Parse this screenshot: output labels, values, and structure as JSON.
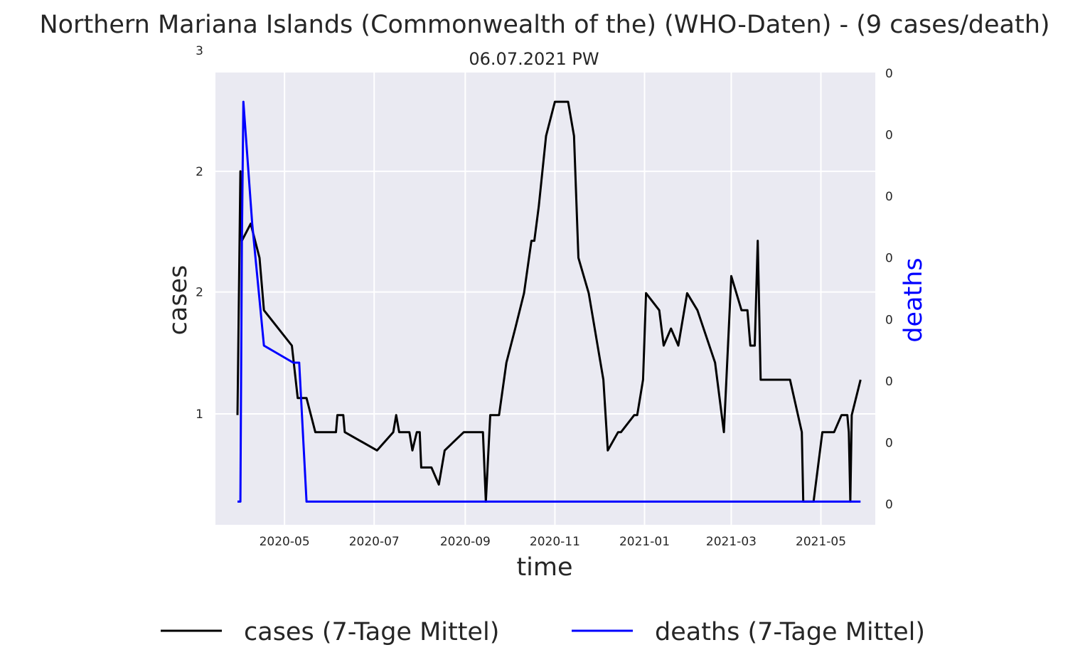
{
  "chart_data": {
    "type": "line",
    "title": "Northern Mariana Islands (Commonwealth of the) (WHO-Daten) - (9 cases/death)",
    "subtitle": "06.07.2021 PW",
    "xlabel": "time",
    "ylabel": "cases",
    "ylabel_right": "deaths",
    "x_ticks": [
      "2020-05",
      "2020-07",
      "2020-09",
      "2020-11",
      "2021-01",
      "2021-03",
      "2021-05"
    ],
    "y_ticks_left": [
      "1",
      "2",
      "2",
      "3"
    ],
    "y_ticks_right": [
      "0",
      "0",
      "0",
      "0",
      "0",
      "0",
      "0",
      "0"
    ],
    "xlim": [
      "2020-03-15",
      "2021-06-07"
    ],
    "ylim_left": [
      0.1,
      3.81
    ],
    "ylim_right": [
      0,
      0.1
    ],
    "grid": true,
    "legend_position": "bottom-center",
    "colors": {
      "cases": "#000000",
      "deaths": "#0000ff",
      "axes_bg": "#eaeaf2",
      "grid": "#ffffff"
    },
    "series": [
      {
        "name": "cases (7-Tage Mittel)",
        "axis": "left",
        "points": [
          [
            "2020-03-30",
            1.0
          ],
          [
            "2020-04-01",
            3.0
          ],
          [
            "2020-04-02",
            2.43
          ],
          [
            "2020-04-08",
            2.57
          ],
          [
            "2020-04-14",
            2.29
          ],
          [
            "2020-04-17",
            1.86
          ],
          [
            "2020-05-06",
            1.57
          ],
          [
            "2020-05-10",
            1.14
          ],
          [
            "2020-05-16",
            1.14
          ],
          [
            "2020-05-22",
            0.86
          ],
          [
            "2020-06-05",
            0.86
          ],
          [
            "2020-06-06",
            1.0
          ],
          [
            "2020-06-10",
            1.0
          ],
          [
            "2020-06-11",
            0.86
          ],
          [
            "2020-07-03",
            0.71
          ],
          [
            "2020-07-14",
            0.86
          ],
          [
            "2020-07-16",
            1.0
          ],
          [
            "2020-07-18",
            0.86
          ],
          [
            "2020-07-25",
            0.86
          ],
          [
            "2020-07-27",
            0.71
          ],
          [
            "2020-07-30",
            0.86
          ],
          [
            "2020-08-01",
            0.86
          ],
          [
            "2020-08-02",
            0.57
          ],
          [
            "2020-08-09",
            0.57
          ],
          [
            "2020-08-14",
            0.43
          ],
          [
            "2020-08-18",
            0.71
          ],
          [
            "2020-08-31",
            0.86
          ],
          [
            "2020-09-13",
            0.86
          ],
          [
            "2020-09-15",
            0.29
          ],
          [
            "2020-09-18",
            1.0
          ],
          [
            "2020-09-24",
            1.0
          ],
          [
            "2020-09-29",
            1.43
          ],
          [
            "2020-10-05",
            1.71
          ],
          [
            "2020-10-11",
            2.0
          ],
          [
            "2020-10-16",
            2.43
          ],
          [
            "2020-10-18",
            2.43
          ],
          [
            "2020-10-21",
            2.71
          ],
          [
            "2020-10-26",
            3.29
          ],
          [
            "2020-11-01",
            3.57
          ],
          [
            "2020-11-10",
            3.57
          ],
          [
            "2020-11-14",
            3.29
          ],
          [
            "2020-11-17",
            2.29
          ],
          [
            "2020-11-24",
            2.0
          ],
          [
            "2020-12-04",
            1.29
          ],
          [
            "2020-12-07",
            0.71
          ],
          [
            "2020-12-14",
            0.86
          ],
          [
            "2020-12-16",
            0.86
          ],
          [
            "2020-12-25",
            1.0
          ],
          [
            "2020-12-27",
            1.0
          ],
          [
            "2020-12-31",
            1.29
          ],
          [
            "2021-01-02",
            2.0
          ],
          [
            "2021-01-11",
            1.86
          ],
          [
            "2021-01-14",
            1.57
          ],
          [
            "2021-01-19",
            1.71
          ],
          [
            "2021-01-24",
            1.57
          ],
          [
            "2021-01-30",
            2.0
          ],
          [
            "2021-02-06",
            1.86
          ],
          [
            "2021-02-18",
            1.43
          ],
          [
            "2021-02-24",
            0.86
          ],
          [
            "2021-03-01",
            2.14
          ],
          [
            "2021-03-08",
            1.86
          ],
          [
            "2021-03-12",
            1.86
          ],
          [
            "2021-03-14",
            1.57
          ],
          [
            "2021-03-17",
            1.57
          ],
          [
            "2021-03-19",
            2.43
          ],
          [
            "2021-03-21",
            1.29
          ],
          [
            "2021-04-10",
            1.29
          ],
          [
            "2021-04-18",
            0.86
          ],
          [
            "2021-04-19",
            0.29
          ],
          [
            "2021-04-26",
            0.29
          ],
          [
            "2021-05-02",
            0.86
          ],
          [
            "2021-05-10",
            0.86
          ],
          [
            "2021-05-15",
            1.0
          ],
          [
            "2021-05-19",
            1.0
          ],
          [
            "2021-05-20",
            0.86
          ],
          [
            "2021-05-21",
            0.29
          ],
          [
            "2021-05-22",
            1.0
          ],
          [
            "2021-05-28",
            1.29
          ]
        ]
      },
      {
        "name": "deaths (7-Tage Mittel)",
        "axis": "left",
        "points": [
          [
            "2020-03-30",
            0.29
          ],
          [
            "2020-04-01",
            0.29
          ],
          [
            "2020-04-02",
            2.43
          ],
          [
            "2020-04-03",
            3.57
          ],
          [
            "2020-04-09",
            2.57
          ],
          [
            "2020-04-17",
            1.57
          ],
          [
            "2020-05-07",
            1.43
          ],
          [
            "2020-05-11",
            1.43
          ],
          [
            "2020-05-16",
            0.29
          ],
          [
            "2021-05-28",
            0.29
          ]
        ]
      }
    ]
  }
}
